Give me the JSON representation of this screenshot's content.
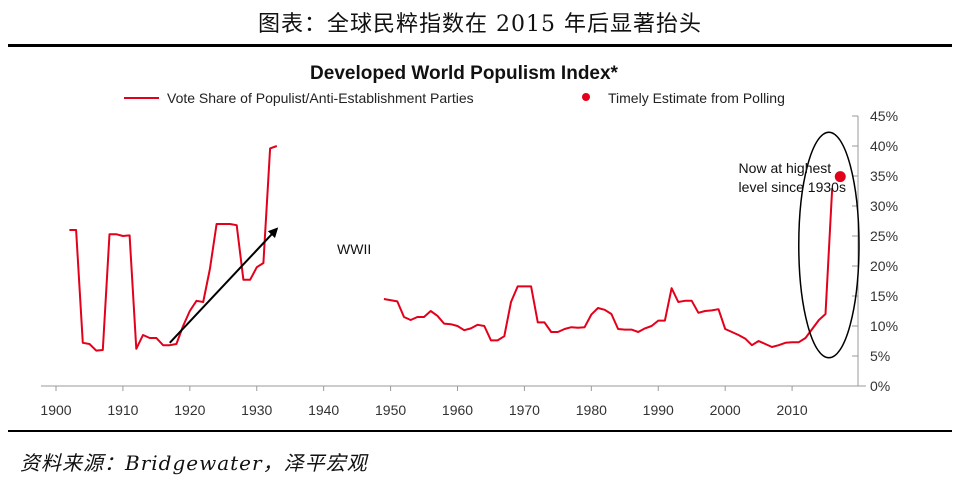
{
  "caption": "图表：全球民粹指数在 2015 年后显著抬头",
  "source": "资料来源：Bridgewater，泽平宏观",
  "colors": {
    "series": "#e3001b",
    "arrow": "#000000",
    "ellipse": "#000000",
    "text": "#222222"
  },
  "chart_data": {
    "type": "line",
    "title": "Developed World Populism Index*",
    "xlim": [
      1900,
      2018
    ],
    "ylim": [
      0,
      45
    ],
    "y_unit": "%",
    "x_ticks": [
      1900,
      1910,
      1920,
      1930,
      1940,
      1950,
      1960,
      1970,
      1980,
      1990,
      2000,
      2010
    ],
    "y_ticks": [
      "0%",
      "5%",
      "10%",
      "15%",
      "20%",
      "25%",
      "30%",
      "35%",
      "40%",
      "45%"
    ],
    "y_tick_values": [
      0,
      5,
      10,
      15,
      20,
      25,
      30,
      35,
      40,
      45
    ],
    "y_axis_side": "right",
    "grid": false,
    "legend": [
      {
        "label": "Vote Share of Populist/Anti-Establishment Parties",
        "marker": "line"
      },
      {
        "label": "Timely Estimate from Polling",
        "marker": "dot"
      }
    ],
    "series": [
      {
        "name": "Vote Share of Populist/Anti-Establishment Parties",
        "segments": [
          [
            [
              1902,
              26.0
            ],
            [
              1903,
              26.0
            ],
            [
              1904,
              7.2
            ],
            [
              1905,
              7.0
            ],
            [
              1906,
              5.9
            ],
            [
              1907,
              6.0
            ],
            [
              1908,
              25.3
            ],
            [
              1909,
              25.3
            ],
            [
              1910,
              25.0
            ],
            [
              1911,
              25.1
            ],
            [
              1912,
              6.2
            ],
            [
              1913,
              8.5
            ],
            [
              1914,
              8.0
            ],
            [
              1915,
              8.0
            ],
            [
              1916,
              6.8
            ],
            [
              1917,
              6.8
            ],
            [
              1918,
              7.0
            ],
            [
              1919,
              10.0
            ],
            [
              1920,
              12.5
            ],
            [
              1921,
              14.2
            ],
            [
              1922,
              14.0
            ],
            [
              1923,
              19.5
            ],
            [
              1924,
              27.0
            ],
            [
              1925,
              27.0
            ],
            [
              1926,
              27.0
            ],
            [
              1927,
              26.8
            ],
            [
              1928,
              17.7
            ],
            [
              1929,
              17.7
            ],
            [
              1930,
              19.8
            ],
            [
              1931,
              20.5
            ],
            [
              1932,
              39.6
            ],
            [
              1933,
              40.0
            ]
          ],
          [
            [
              1949,
              14.5
            ],
            [
              1951,
              14.1
            ],
            [
              1952,
              11.5
            ],
            [
              1953,
              11.0
            ],
            [
              1954,
              11.5
            ],
            [
              1955,
              11.5
            ],
            [
              1956,
              12.5
            ],
            [
              1957,
              11.7
            ],
            [
              1958,
              10.4
            ],
            [
              1959,
              10.3
            ],
            [
              1960,
              10.0
            ],
            [
              1961,
              9.3
            ],
            [
              1962,
              9.6
            ],
            [
              1963,
              10.2
            ],
            [
              1964,
              10.0
            ],
            [
              1965,
              7.6
            ],
            [
              1966,
              7.6
            ],
            [
              1967,
              8.3
            ],
            [
              1968,
              14.0
            ],
            [
              1969,
              16.6
            ],
            [
              1970,
              16.6
            ],
            [
              1971,
              16.6
            ],
            [
              1972,
              10.6
            ],
            [
              1973,
              10.6
            ],
            [
              1974,
              9.0
            ],
            [
              1975,
              9.0
            ],
            [
              1976,
              9.5
            ],
            [
              1977,
              9.8
            ],
            [
              1978,
              9.7
            ],
            [
              1979,
              9.8
            ],
            [
              1980,
              11.9
            ],
            [
              1981,
              13.0
            ],
            [
              1982,
              12.7
            ],
            [
              1983,
              12.0
            ],
            [
              1984,
              9.5
            ],
            [
              1985,
              9.4
            ],
            [
              1986,
              9.4
            ],
            [
              1987,
              9.0
            ],
            [
              1988,
              9.6
            ],
            [
              1989,
              10.0
            ],
            [
              1990,
              10.9
            ],
            [
              1991,
              10.9
            ],
            [
              1992,
              16.3
            ],
            [
              1993,
              14.0
            ],
            [
              1994,
              14.2
            ],
            [
              1995,
              14.2
            ],
            [
              1996,
              12.2
            ],
            [
              1997,
              12.5
            ],
            [
              1998,
              12.6
            ],
            [
              1999,
              12.8
            ],
            [
              2000,
              9.5
            ],
            [
              2001,
              9.0
            ],
            [
              2002,
              8.5
            ],
            [
              2003,
              7.9
            ],
            [
              2004,
              6.8
            ],
            [
              2005,
              7.5
            ],
            [
              2006,
              7.0
            ],
            [
              2007,
              6.5
            ],
            [
              2008,
              6.8
            ],
            [
              2009,
              7.2
            ],
            [
              2010,
              7.3
            ],
            [
              2011,
              7.3
            ],
            [
              2012,
              8.0
            ],
            [
              2013,
              9.5
            ],
            [
              2014,
              11.0
            ],
            [
              2015,
              12.0
            ],
            [
              2016,
              33.0
            ]
          ]
        ]
      },
      {
        "name": "Timely Estimate from Polling",
        "points": [
          [
            2017.2,
            34.9
          ]
        ]
      }
    ],
    "annotations": [
      {
        "text": "WWII",
        "x": 1942,
        "y": 22.0
      },
      {
        "text_lines": [
          "Now at highest",
          "level since 1930s"
        ],
        "x": 2002,
        "y": 35.5
      }
    ],
    "arrow": {
      "from": [
        1917,
        7.2
      ],
      "to": [
        1933,
        26.2
      ]
    },
    "ellipse": {
      "center": [
        2015.5,
        23.5
      ],
      "radius_years": 4.5,
      "radius_pct": 18.8
    }
  }
}
